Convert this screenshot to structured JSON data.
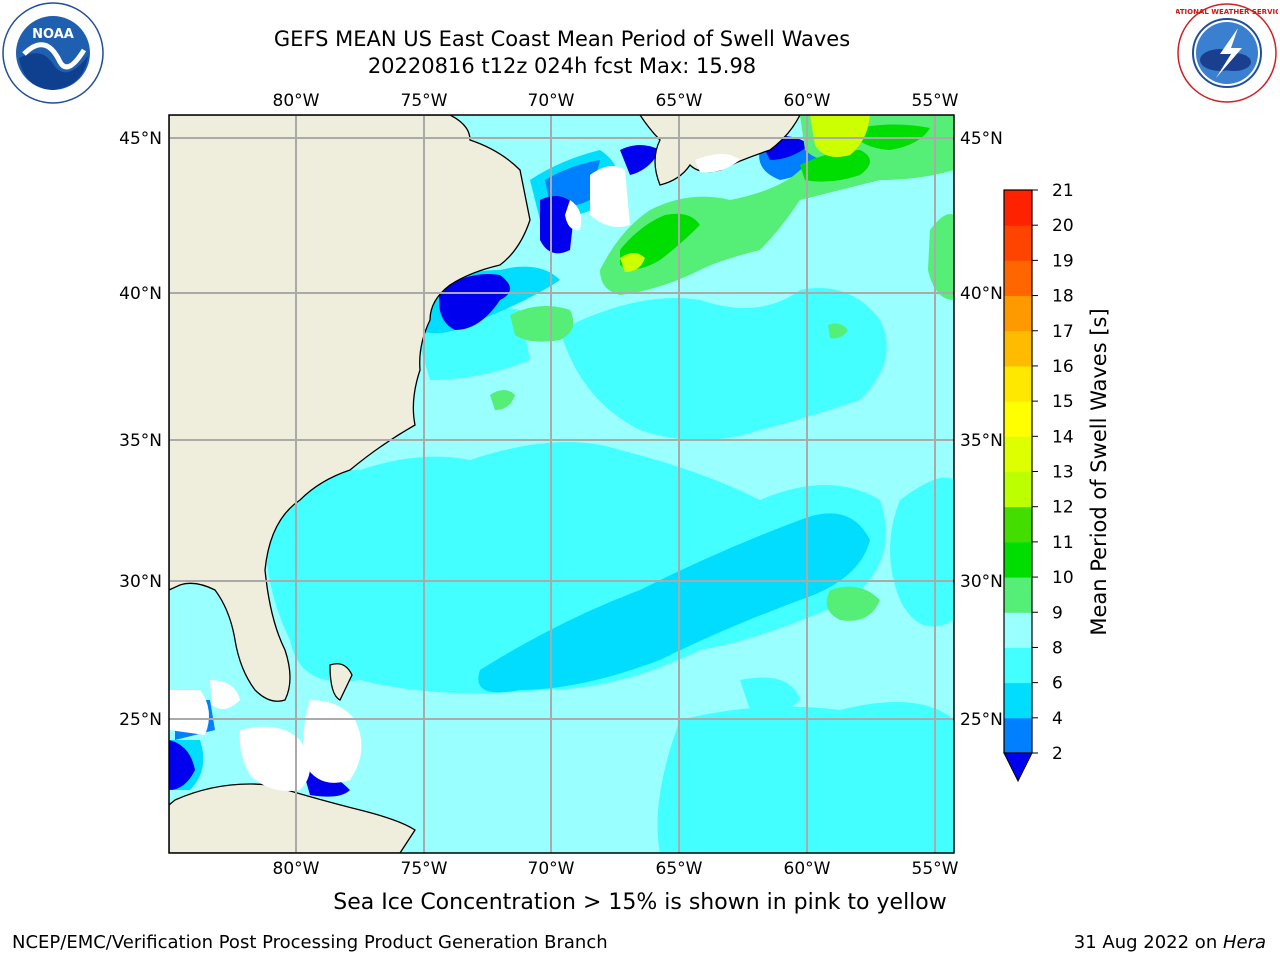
{
  "header": {
    "title_line1": "GEFS MEAN US East Coast Mean Period of Swell Waves",
    "title_line2": "20220816 t12z 024h fcst   Max: 15.98"
  },
  "logos": {
    "left": {
      "icon": "noaa-logo",
      "text": "NOAA"
    },
    "right": {
      "icon": "nws-logo",
      "text": "NATIONAL WEATHER SERVICE"
    }
  },
  "map": {
    "lon_labels": [
      "80°W",
      "75°W",
      "70°W",
      "65°W",
      "60°W",
      "55°W"
    ],
    "lat_labels": [
      "45°N",
      "40°N",
      "35°N",
      "30°N",
      "25°N"
    ],
    "land_color": "#efeedd",
    "ocean_color": "#99ffff"
  },
  "colorbar": {
    "label": "Mean Period of Swell Waves [s]",
    "levels": [
      {
        "value": "2",
        "color": "#007fff"
      },
      {
        "value": "4",
        "color": "#00ddff"
      },
      {
        "value": "6",
        "color": "#44ffff"
      },
      {
        "value": "8",
        "color": "#99ffff"
      },
      {
        "value": "9",
        "color": "#55ee77"
      },
      {
        "value": "10",
        "color": "#00dd00"
      },
      {
        "value": "11",
        "color": "#44dd00"
      },
      {
        "value": "12",
        "color": "#bbff00"
      },
      {
        "value": "13",
        "color": "#ddff00"
      },
      {
        "value": "14",
        "color": "#ffff00"
      },
      {
        "value": "15",
        "color": "#ffe800"
      },
      {
        "value": "16",
        "color": "#ffbb00"
      },
      {
        "value": "17",
        "color": "#ff9900"
      },
      {
        "value": "18",
        "color": "#ff6600"
      },
      {
        "value": "19",
        "color": "#ff4400"
      },
      {
        "value": "20",
        "color": "#ff2200"
      }
    ],
    "top_label": "21",
    "under_color": "#0000ee"
  },
  "footer": {
    "ice_note": "Sea Ice Concentration > 15% is shown in pink to yellow",
    "left": "NCEP/EMC/Verification Post Processing Product Generation Branch",
    "right_date": "31 Aug 2022 on ",
    "right_machine": "Hera"
  }
}
